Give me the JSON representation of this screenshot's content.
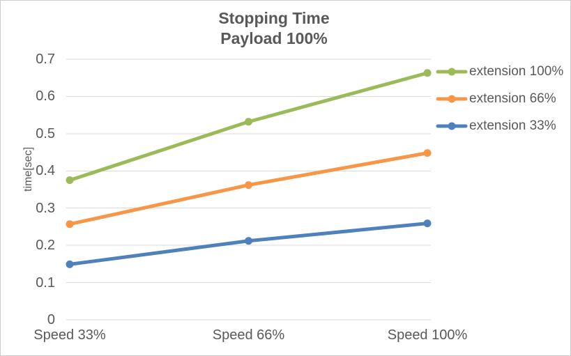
{
  "chart_data": {
    "type": "line",
    "title": "Stopping Time",
    "subtitle": "Payload 100%",
    "categories": [
      "Speed 33%",
      "Speed 66%",
      "Speed 100%"
    ],
    "series": [
      {
        "name": "extension 100%",
        "color": "#9BBB59",
        "values": [
          0.375,
          0.532,
          0.663
        ]
      },
      {
        "name": "extension 66%",
        "color": "#F79646",
        "values": [
          0.257,
          0.362,
          0.448
        ]
      },
      {
        "name": "extension 33%",
        "color": "#4F81BD",
        "values": [
          0.149,
          0.212,
          0.259
        ]
      }
    ],
    "xlabel": "",
    "ylabel": "time[sec]",
    "ylim": [
      0,
      0.7
    ],
    "yticks": [
      0,
      0.1,
      0.2,
      0.3,
      0.4,
      0.5,
      0.6,
      0.7
    ],
    "ytick_labels": [
      "0",
      "0.1",
      "0.2",
      "0.3",
      "0.4",
      "0.5",
      "0.6",
      "0.7"
    ],
    "grid": true,
    "gridline_color": "#D9D9D9",
    "text_color": "#595959",
    "legend_position": "right"
  }
}
